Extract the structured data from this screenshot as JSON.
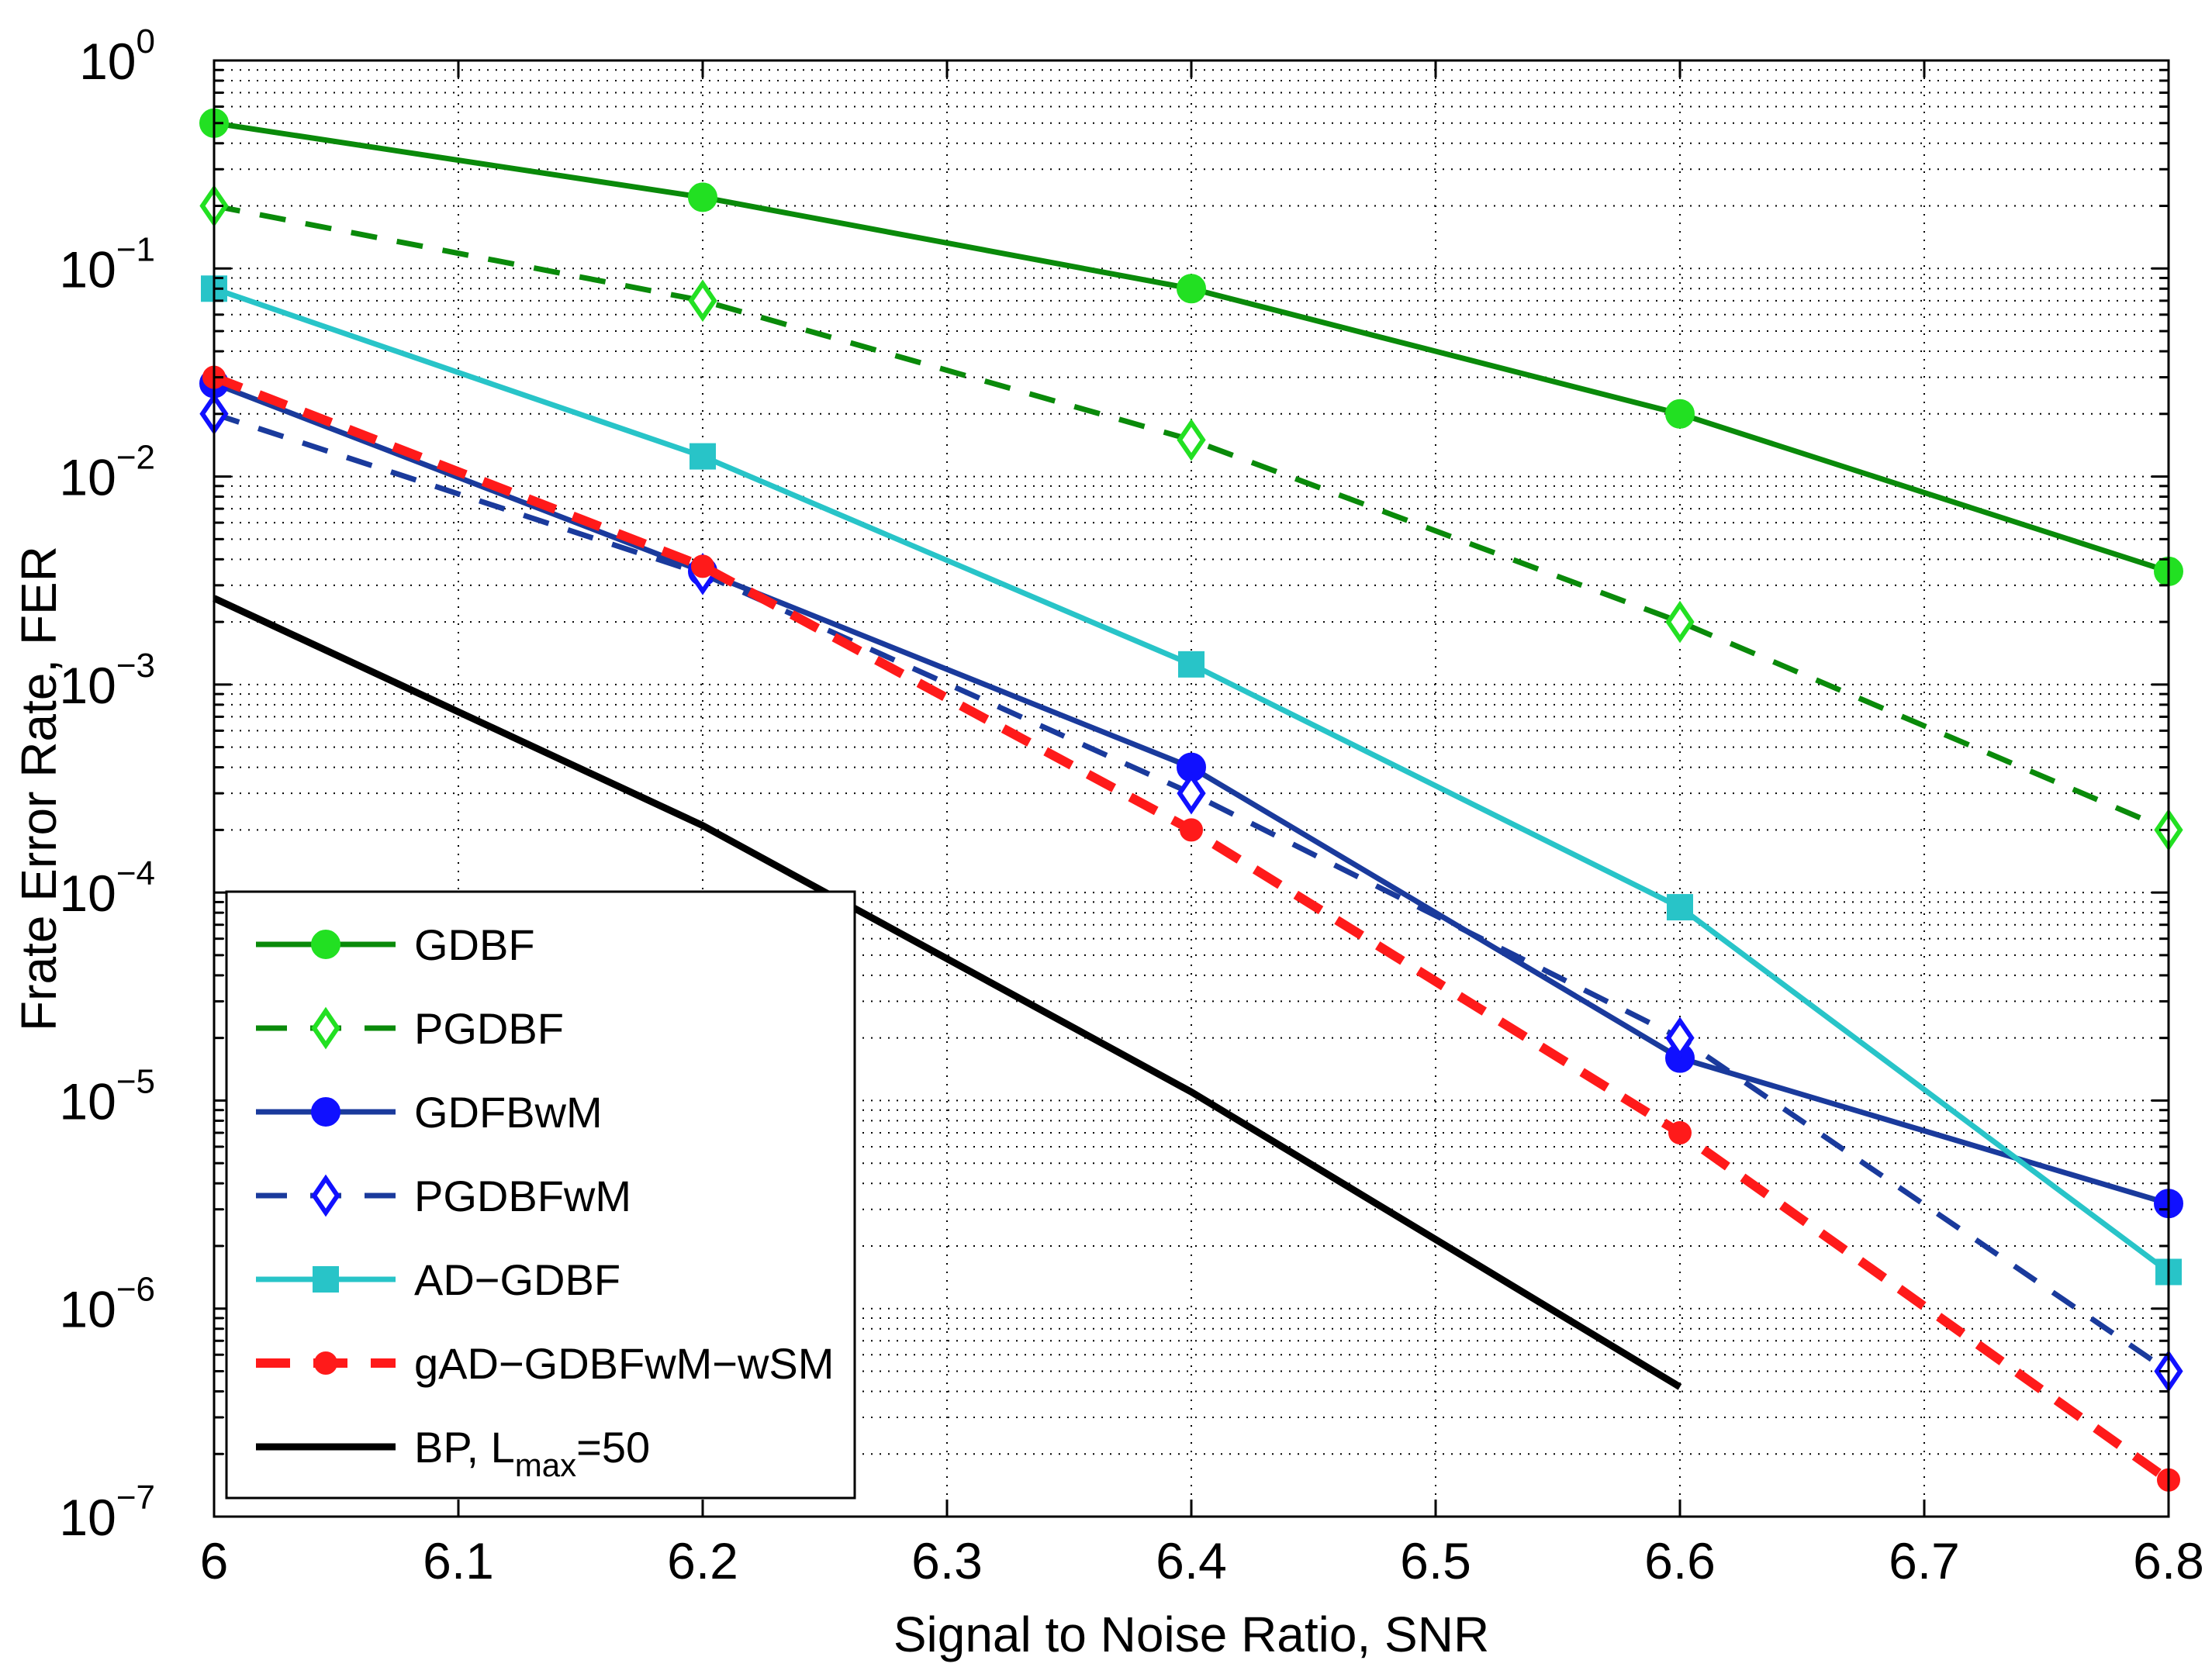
{
  "chart_data": {
    "type": "line",
    "title": "",
    "xlabel": "Signal to Noise Ratio, SNR",
    "ylabel": "Frate Error Rate, FER",
    "xlim": [
      6,
      6.8
    ],
    "ylim": [
      1e-07,
      1
    ],
    "yscale": "log",
    "grid": true,
    "legend_position": "bottom-left",
    "x_ticks": [
      6,
      6.1,
      6.2,
      6.3,
      6.4,
      6.5,
      6.6,
      6.7,
      6.8
    ],
    "x_tick_labels": [
      "6",
      "6.1",
      "6.2",
      "6.3",
      "6.4",
      "6.5",
      "6.6",
      "6.7",
      "6.8"
    ],
    "y_ticks": [
      {
        "value": 1,
        "base": "10",
        "exp": "0"
      },
      {
        "value": 0.1,
        "base": "10",
        "exp": "−1"
      },
      {
        "value": 0.01,
        "base": "10",
        "exp": "−2"
      },
      {
        "value": 0.001,
        "base": "10",
        "exp": "−3"
      },
      {
        "value": 0.0001,
        "base": "10",
        "exp": "−4"
      },
      {
        "value": 1e-05,
        "base": "10",
        "exp": "−5"
      },
      {
        "value": 1e-06,
        "base": "10",
        "exp": "−6"
      },
      {
        "value": 1e-07,
        "base": "10",
        "exp": "−7"
      }
    ],
    "series": [
      {
        "name": "GDBF",
        "color": "#0a8a0a",
        "dash": "solid",
        "marker": "circle",
        "marker_color": "#22e022",
        "marker_fill": true,
        "x": [
          6,
          6.2,
          6.4,
          6.6,
          6.8
        ],
        "y": [
          0.5,
          0.22,
          0.08,
          0.02,
          0.0035
        ]
      },
      {
        "name": "PGDBF",
        "color": "#0a8a0a",
        "dash": "dashed",
        "marker": "diamond",
        "marker_color": "#22e022",
        "marker_fill": false,
        "x": [
          6,
          6.2,
          6.4,
          6.6,
          6.8
        ],
        "y": [
          0.2,
          0.07,
          0.015,
          0.002,
          0.0002
        ]
      },
      {
        "name": "GDFBwM",
        "color": "#1a3a9c",
        "dash": "solid",
        "marker": "circle",
        "marker_color": "#1010ff",
        "marker_fill": true,
        "x": [
          6,
          6.2,
          6.4,
          6.6,
          6.8
        ],
        "y": [
          0.028,
          0.0035,
          0.0004,
          1.6e-05,
          3.2e-06
        ]
      },
      {
        "name": "PGDBFwM",
        "color": "#1a3a9c",
        "dash": "dashed",
        "marker": "diamond",
        "marker_color": "#1010ff",
        "marker_fill": false,
        "x": [
          6,
          6.2,
          6.4,
          6.6,
          6.8
        ],
        "y": [
          0.02,
          0.0034,
          0.0003,
          2e-05,
          5e-07
        ]
      },
      {
        "name": "AD−GDBF",
        "color": "#28c4c8",
        "dash": "solid",
        "marker": "square",
        "marker_color": "#28c4c8",
        "marker_fill": true,
        "x": [
          6,
          6.2,
          6.4,
          6.6,
          6.8
        ],
        "y": [
          0.08,
          0.0125,
          0.00125,
          8.5e-05,
          1.5e-06
        ]
      },
      {
        "name": "gAD−GDBFwM−wSM",
        "color": "#ff1a1a",
        "dash": "dashed-thick",
        "marker": "circle-small",
        "marker_color": "#ff1a1a",
        "marker_fill": true,
        "x": [
          6,
          6.2,
          6.4,
          6.6,
          6.8
        ],
        "y": [
          0.03,
          0.0037,
          0.0002,
          7e-06,
          1.5e-07
        ]
      },
      {
        "name": "BP, Lmax=50",
        "color": "#000000",
        "dash": "solid",
        "marker": "none",
        "marker_color": "#000000",
        "marker_fill": false,
        "x": [
          6,
          6.2,
          6.4,
          6.6
        ],
        "y": [
          0.0026,
          0.00021,
          1.1e-05,
          4.2e-07
        ]
      }
    ],
    "legend_labels": {
      "bp_main": "BP, L",
      "bp_sub": "max",
      "bp_tail": "=50"
    }
  }
}
